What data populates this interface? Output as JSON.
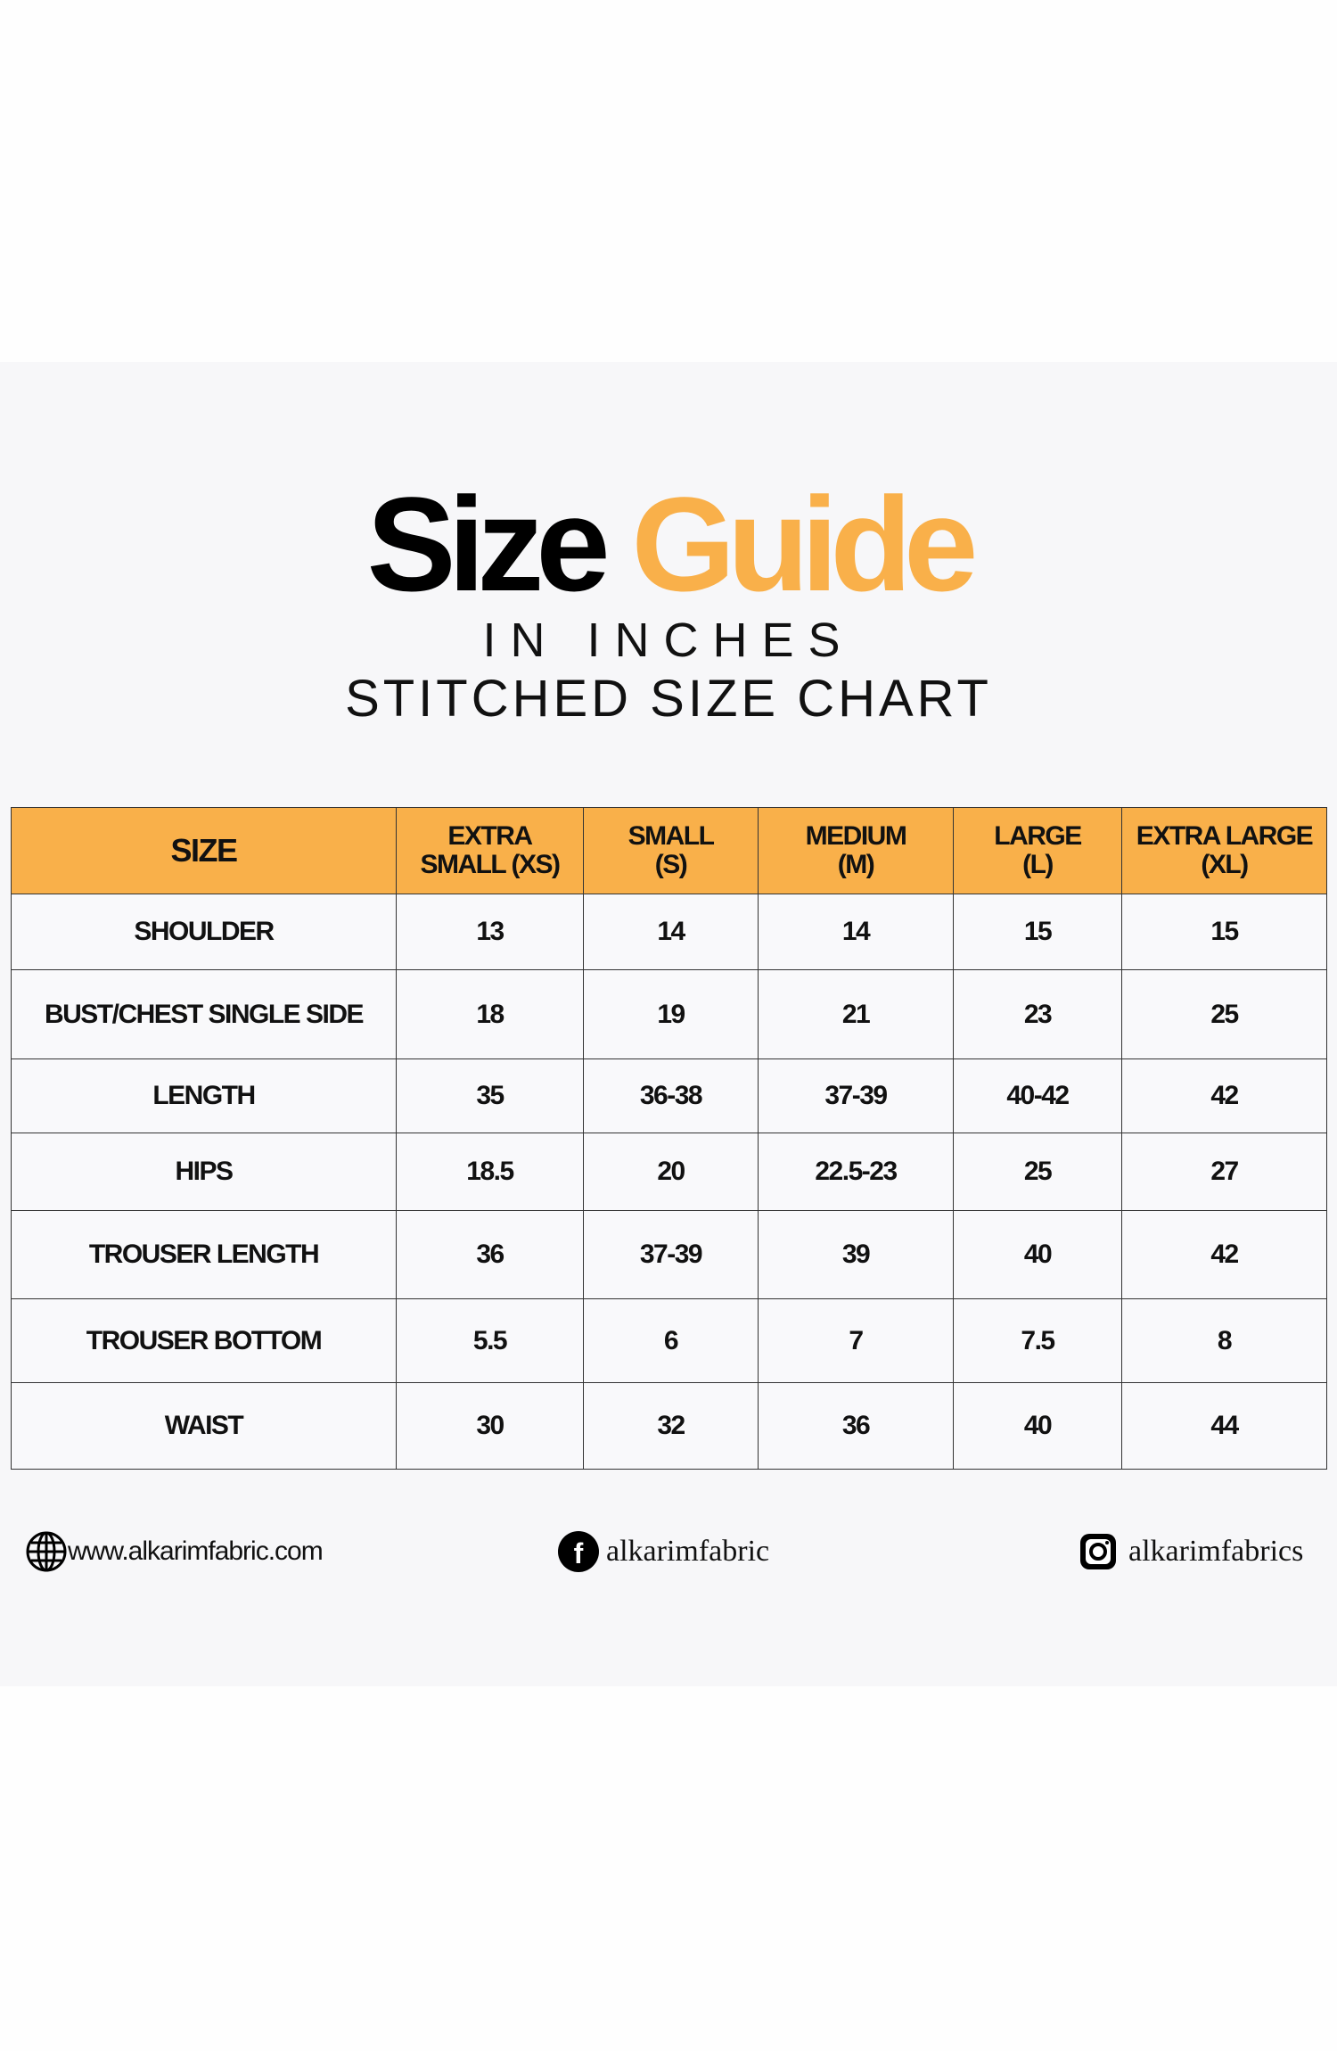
{
  "title": {
    "part1": "Size",
    "part2": "Guide"
  },
  "subtitle1": "IN INCHES",
  "subtitle2": "STITCHED SIZE CHART",
  "colors": {
    "accent": "#f9b04a",
    "panel": "#f7f7f9"
  },
  "table": {
    "headers": [
      [
        "SIZE"
      ],
      [
        "EXTRA",
        "SMALL (XS)"
      ],
      [
        "SMALL",
        "(S)"
      ],
      [
        "MEDIUM",
        "(M)"
      ],
      [
        "LARGE",
        "(L)"
      ],
      [
        "EXTRA LARGE",
        "(XL)"
      ]
    ],
    "rows": [
      [
        "SHOULDER",
        "13",
        "14",
        "14",
        "15",
        "15"
      ],
      [
        "BUST/CHEST SINGLE SIDE",
        "18",
        "19",
        "21",
        "23",
        "25"
      ],
      [
        "LENGTH",
        "35",
        "36-38",
        "37-39",
        "40-42",
        "42"
      ],
      [
        "HIPS",
        "18.5",
        "20",
        "22.5-23",
        "25",
        "27"
      ],
      [
        "TROUSER LENGTH",
        "36",
        "37-39",
        "39",
        "40",
        "42"
      ],
      [
        "TROUSER BOTTOM",
        "5.5",
        "6",
        "7",
        "7.5",
        "8"
      ],
      [
        "WAIST",
        "30",
        "32",
        "36",
        "40",
        "44"
      ]
    ]
  },
  "footer": {
    "website": {
      "icon": "globe-icon",
      "text": "www.alkarimfabric.com"
    },
    "facebook": {
      "icon": "facebook-icon",
      "text": "alkarimfabric"
    },
    "instagram": {
      "icon": "instagram-icon",
      "text": "alkarimfabrics"
    }
  }
}
